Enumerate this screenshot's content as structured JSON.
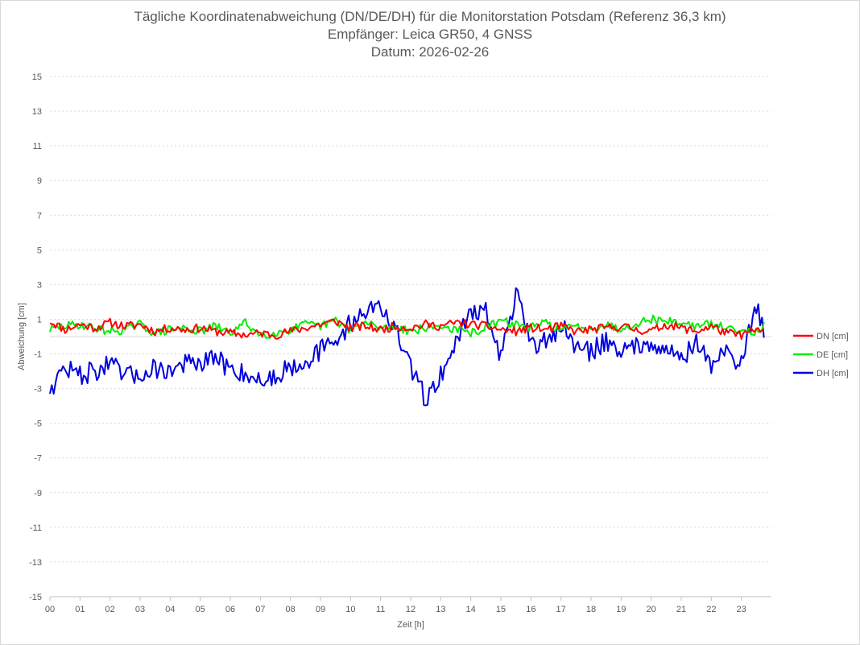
{
  "chart_data": {
    "type": "line",
    "title_lines": [
      "Tägliche Koordinatenabweichung (DN/DE/DH) für die Monitorstation Potsdam (Referenz 36,3 km)",
      "Empfänger: Leica GR50, 4 GNSS",
      "Datum: 2026-02-26"
    ],
    "xlabel": "Zeit [h]",
    "ylabel": "Abweichung [cm]",
    "xlim": [
      0,
      24
    ],
    "ylim": [
      -15,
      15
    ],
    "x_ticks": [
      "00",
      "01",
      "02",
      "03",
      "04",
      "05",
      "06",
      "07",
      "08",
      "09",
      "10",
      "11",
      "12",
      "13",
      "14",
      "15",
      "16",
      "17",
      "18",
      "19",
      "20",
      "21",
      "22",
      "23"
    ],
    "y_ticks": [
      15,
      13,
      11,
      9,
      7,
      5,
      3,
      1,
      -1,
      -3,
      -5,
      -7,
      -9,
      -11,
      -13,
      -15
    ],
    "y_tick_labels": [
      "15",
      "13",
      "11",
      "9",
      "7",
      "5",
      "3",
      "1",
      "-1",
      "-3",
      "-5",
      "-7",
      "-9",
      "-11",
      "-13",
      "-15"
    ],
    "legend_position": "right",
    "x": [
      0,
      0.5,
      1,
      1.5,
      2,
      2.5,
      3,
      3.5,
      4,
      4.5,
      5,
      5.5,
      6,
      6.5,
      7,
      7.5,
      8,
      8.5,
      9,
      9.5,
      10,
      10.5,
      11,
      11.5,
      12,
      12.5,
      13,
      13.5,
      14,
      14.5,
      15,
      15.5,
      16,
      16.5,
      17,
      17.5,
      18,
      18.5,
      19,
      19.5,
      20,
      20.5,
      21,
      21.5,
      22,
      22.5,
      23,
      23.5,
      23.75
    ],
    "series": [
      {
        "name": "DN [cm]",
        "color": "#ff0000",
        "values": [
          0.9,
          0.4,
          0.7,
          0.5,
          0.8,
          0.6,
          0.7,
          0.3,
          0.5,
          0.4,
          0.5,
          0.3,
          0.2,
          0.1,
          0.2,
          0.1,
          0.3,
          0.5,
          0.7,
          0.9,
          0.5,
          0.6,
          0.4,
          0.6,
          0.5,
          0.7,
          0.6,
          0.8,
          0.7,
          0.6,
          0.4,
          0.3,
          0.5,
          0.4,
          0.6,
          0.3,
          0.4,
          0.5,
          0.6,
          0.4,
          0.3,
          0.7,
          0.5,
          0.3,
          0.6,
          0.2,
          0.1,
          0.4,
          0.3
        ]
      },
      {
        "name": "DE [cm]",
        "color": "#00ee00",
        "values": [
          0.4,
          0.6,
          0.7,
          0.5,
          0.3,
          0.4,
          0.7,
          0.2,
          0.4,
          0.5,
          0.3,
          0.6,
          0.2,
          0.8,
          0.1,
          0.2,
          0.4,
          0.7,
          0.6,
          0.9,
          0.4,
          0.8,
          0.5,
          0.6,
          0.3,
          0.5,
          0.6,
          0.4,
          0.2,
          0.5,
          0.9,
          0.7,
          0.5,
          0.8,
          0.4,
          0.6,
          0.5,
          0.7,
          0.4,
          0.8,
          1.0,
          0.9,
          0.8,
          0.6,
          0.7,
          0.5,
          0.4,
          0.3,
          0.6
        ]
      },
      {
        "name": "DH [cm]",
        "color": "#0000dd",
        "values": [
          -3.0,
          -1.8,
          -2.2,
          -2.0,
          -1.6,
          -2.3,
          -2.2,
          -1.8,
          -2.0,
          -1.5,
          -1.7,
          -1.2,
          -1.9,
          -2.1,
          -2.6,
          -2.3,
          -1.7,
          -1.4,
          -0.8,
          -0.3,
          0.8,
          1.5,
          1.8,
          0.3,
          -1.8,
          -3.6,
          -2.2,
          -0.4,
          1.6,
          1.4,
          -1.2,
          2.5,
          -0.6,
          -0.2,
          0.6,
          -0.6,
          -0.9,
          -0.2,
          -0.8,
          -0.6,
          -0.2,
          -0.8,
          -1.2,
          -0.4,
          -1.6,
          -0.9,
          -1.5,
          1.8,
          0.4
        ]
      }
    ]
  }
}
